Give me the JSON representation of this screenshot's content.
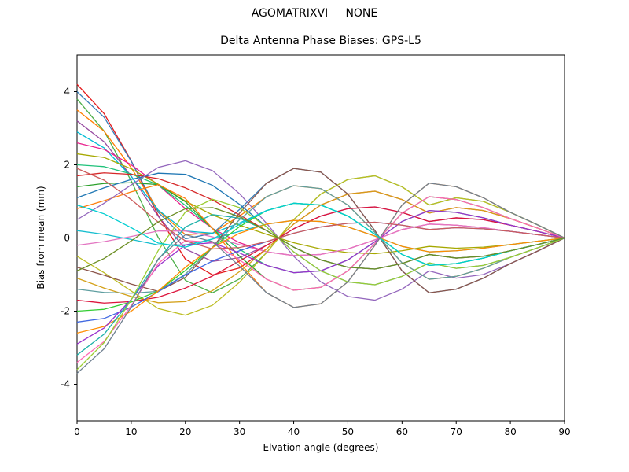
{
  "header": {
    "title_line1": "AGOMATRIXVI     NONE",
    "title_line2": "Delta Antenna Phase Biases: GPS-L5"
  },
  "chart_data": {
    "type": "line",
    "title": "AGOMATRIXVI     NONE",
    "subtitle": "Delta Antenna Phase Biases: GPS-L5",
    "xlabel": "Elvation angle (degrees)",
    "ylabel": "Bias from mean (mm)",
    "xlim": [
      0,
      90
    ],
    "ylim": [
      -5,
      5
    ],
    "xticks": [
      0,
      10,
      20,
      30,
      40,
      50,
      60,
      70,
      80,
      90
    ],
    "yticks": [
      -4,
      -2,
      0,
      2,
      4
    ],
    "grid": false,
    "legend": "none",
    "frame_color": "#000000",
    "background": "#ffffff",
    "x": [
      0,
      5,
      10,
      15,
      20,
      25,
      30,
      35,
      40,
      45,
      50,
      55,
      60,
      65,
      70,
      75,
      80,
      85,
      90
    ],
    "series": [
      {
        "name": "s01",
        "color": "#e41a1c",
        "values": [
          4.2,
          3.4,
          2.11,
          0.61,
          -0.58,
          -1.01,
          -0.82,
          -0.3,
          0.38,
          0.9,
          1.2,
          1.28,
          1.05,
          0.68,
          0.83,
          0.75,
          0.53,
          0.27,
          0
        ]
      },
      {
        "name": "s02",
        "color": "#377eb8",
        "values": [
          4.0,
          3.3,
          2.1,
          0.7,
          -0.02,
          0.12,
          0.78,
          1.5,
          1.9,
          1.8,
          1.2,
          0.2,
          -0.9,
          -1.5,
          -1.4,
          -1.1,
          -0.7,
          -0.36,
          0
        ]
      },
      {
        "name": "s03",
        "color": "#4daf4a",
        "values": [
          3.8,
          2.92,
          1.56,
          0.01,
          -1.16,
          -1.5,
          -1.12,
          -0.4,
          0.5,
          1.2,
          1.6,
          1.7,
          1.4,
          0.9,
          1.1,
          1.0,
          0.7,
          0.36,
          0
        ]
      },
      {
        "name": "s04",
        "color": "#ff7f00",
        "values": [
          3.5,
          2.92,
          1.92,
          0.75,
          0.09,
          0.13,
          0.6,
          1.13,
          1.43,
          1.35,
          0.9,
          0.15,
          -0.68,
          -1.13,
          -1.05,
          -0.83,
          -0.53,
          -0.27,
          0
        ]
      },
      {
        "name": "s05",
        "color": "#984ea3",
        "values": [
          3.2,
          2.63,
          1.69,
          0.59,
          -0.3,
          -0.64,
          -0.54,
          -0.2,
          0.25,
          0.6,
          0.8,
          0.85,
          0.7,
          0.45,
          0.55,
          0.5,
          0.35,
          0.18,
          0
        ]
      },
      {
        "name": "s06",
        "color": "#00bcd4",
        "values": [
          2.9,
          2.46,
          1.68,
          0.76,
          0.19,
          0.13,
          0.41,
          0.75,
          0.95,
          0.9,
          0.6,
          0.1,
          -0.45,
          -0.75,
          -0.7,
          -0.55,
          -0.35,
          -0.18,
          0
        ]
      },
      {
        "name": "s07",
        "color": "#e91e8c",
        "values": [
          2.6,
          2.42,
          2.0,
          1.45,
          0.8,
          0.26,
          -0.13,
          -0.38,
          -0.48,
          -0.45,
          -0.3,
          -0.05,
          0.23,
          0.38,
          0.35,
          0.28,
          0.18,
          0.09,
          0
        ]
      },
      {
        "name": "s08",
        "color": "#a6a800",
        "values": [
          2.3,
          2.2,
          1.89,
          1.47,
          1.01,
          0.63,
          0.35,
          0.1,
          -0.13,
          -0.3,
          -0.4,
          -0.43,
          -0.35,
          -0.23,
          -0.28,
          -0.25,
          -0.18,
          -0.09,
          0
        ]
      },
      {
        "name": "s09",
        "color": "#1fc27a",
        "values": [
          2.0,
          1.95,
          1.75,
          1.45,
          0.89,
          0.26,
          -0.31,
          -0.75,
          -0.95,
          -0.9,
          -0.6,
          -0.1,
          0.45,
          0.75,
          0.7,
          0.55,
          0.35,
          0.18,
          0
        ]
      },
      {
        "name": "s10",
        "color": "#d62728",
        "values": [
          1.7,
          1.78,
          1.74,
          1.62,
          1.37,
          1.04,
          0.63,
          0.2,
          -0.25,
          -0.6,
          -0.8,
          -0.85,
          -0.7,
          -0.45,
          -0.55,
          -0.5,
          -0.35,
          -0.18,
          0
        ]
      },
      {
        "name": "s11",
        "color": "#2ca02c",
        "values": [
          1.4,
          1.49,
          1.51,
          1.46,
          0.99,
          0.26,
          -0.5,
          -1.13,
          -1.43,
          -1.35,
          -0.9,
          -0.15,
          0.68,
          1.13,
          1.05,
          0.83,
          0.53,
          0.27,
          0
        ]
      },
      {
        "name": "s12",
        "color": "#1f77b4",
        "values": [
          1.1,
          1.37,
          1.6,
          1.77,
          1.74,
          1.44,
          0.92,
          0.3,
          -0.38,
          -0.9,
          -1.2,
          -1.28,
          -1.05,
          -0.68,
          -0.83,
          -0.75,
          -0.53,
          -0.27,
          0
        ]
      },
      {
        "name": "s13",
        "color": "#ff7f0e",
        "values": [
          0.8,
          1.02,
          1.26,
          1.46,
          1.08,
          0.26,
          -0.68,
          -1.5,
          -1.9,
          -1.8,
          -1.2,
          -0.2,
          0.9,
          1.5,
          1.4,
          1.1,
          0.7,
          0.36,
          0
        ]
      },
      {
        "name": "s14",
        "color": "#9467bd",
        "values": [
          0.5,
          0.95,
          1.45,
          1.93,
          2.11,
          1.84,
          1.21,
          0.4,
          -0.5,
          -1.2,
          -1.6,
          -1.7,
          -1.4,
          -0.9,
          -1.1,
          -1.0,
          -0.7,
          -0.36,
          0
        ]
      },
      {
        "name": "s15",
        "color": "#17becf",
        "values": [
          0.2,
          0.1,
          -0.04,
          -0.19,
          -0.19,
          -0.03,
          0.18,
          0.38,
          0.48,
          0.45,
          0.3,
          0.05,
          -0.23,
          -0.38,
          -0.35,
          -0.28,
          -0.18,
          -0.09,
          0
        ]
      },
      {
        "name": "s16",
        "color": "#e377c2",
        "values": [
          -0.2,
          -0.1,
          0.04,
          0.19,
          0.19,
          0.03,
          -0.18,
          -0.38,
          -0.48,
          -0.45,
          -0.3,
          -0.05,
          0.23,
          0.38,
          0.35,
          0.28,
          0.18,
          0.09,
          0
        ]
      },
      {
        "name": "s17",
        "color": "#bcbd22",
        "values": [
          -0.5,
          -0.95,
          -1.45,
          -1.93,
          -2.11,
          -1.84,
          -1.21,
          -0.4,
          0.5,
          1.2,
          1.6,
          1.7,
          1.4,
          0.9,
          1.1,
          1.0,
          0.7,
          0.36,
          0
        ]
      },
      {
        "name": "s18",
        "color": "#8c564b",
        "values": [
          -0.8,
          -1.02,
          -1.26,
          -1.46,
          -1.08,
          -0.26,
          0.68,
          1.5,
          1.9,
          1.8,
          1.2,
          0.2,
          -0.9,
          -1.5,
          -1.4,
          -1.1,
          -0.7,
          -0.36,
          0
        ]
      },
      {
        "name": "s19",
        "color": "#d4a017",
        "values": [
          -1.1,
          -1.37,
          -1.6,
          -1.77,
          -1.74,
          -1.44,
          -0.92,
          -0.3,
          0.38,
          0.9,
          1.2,
          1.28,
          1.05,
          0.68,
          0.83,
          0.75,
          0.53,
          0.27,
          0
        ]
      },
      {
        "name": "s20",
        "color": "#5f9ea0",
        "values": [
          -1.4,
          -1.49,
          -1.51,
          -1.46,
          -0.99,
          -0.26,
          0.5,
          1.13,
          1.43,
          1.35,
          0.9,
          0.15,
          -0.68,
          -1.13,
          -1.05,
          -0.83,
          -0.53,
          -0.27,
          0
        ]
      },
      {
        "name": "s21",
        "color": "#dc143c",
        "values": [
          -1.7,
          -1.78,
          -1.74,
          -1.62,
          -1.37,
          -1.04,
          -0.63,
          -0.2,
          0.25,
          0.6,
          0.8,
          0.85,
          0.7,
          0.45,
          0.55,
          0.5,
          0.35,
          0.18,
          0
        ]
      },
      {
        "name": "s22",
        "color": "#32cd32",
        "values": [
          -2.0,
          -1.95,
          -1.75,
          -1.45,
          -0.89,
          -0.26,
          0.31,
          0.75,
          0.95,
          0.9,
          0.6,
          0.1,
          -0.45,
          -0.75,
          -0.7,
          -0.55,
          -0.35,
          -0.18,
          0
        ]
      },
      {
        "name": "s23",
        "color": "#4169e1",
        "values": [
          -2.3,
          -2.2,
          -1.89,
          -1.47,
          -1.01,
          -0.63,
          -0.35,
          -0.1,
          0.13,
          0.3,
          0.4,
          0.43,
          0.35,
          0.23,
          0.28,
          0.25,
          0.18,
          0.09,
          0
        ]
      },
      {
        "name": "s24",
        "color": "#ff8c00",
        "values": [
          -2.6,
          -2.42,
          -2.0,
          -1.45,
          -0.8,
          -0.26,
          0.13,
          0.38,
          0.48,
          0.45,
          0.3,
          0.05,
          -0.23,
          -0.38,
          -0.35,
          -0.28,
          -0.18,
          -0.09,
          0
        ]
      },
      {
        "name": "s25",
        "color": "#9932cc",
        "values": [
          -2.9,
          -2.46,
          -1.68,
          -0.76,
          -0.19,
          -0.13,
          -0.41,
          -0.75,
          -0.95,
          -0.9,
          -0.6,
          -0.1,
          0.45,
          0.75,
          0.7,
          0.55,
          0.35,
          0.18,
          0
        ]
      },
      {
        "name": "s26",
        "color": "#20b2aa",
        "values": [
          -3.2,
          -2.63,
          -1.69,
          -0.59,
          0.3,
          0.64,
          0.54,
          0.2,
          -0.25,
          -0.6,
          -0.8,
          -0.85,
          -0.7,
          -0.45,
          -0.55,
          -0.5,
          -0.35,
          -0.18,
          0
        ]
      },
      {
        "name": "s27",
        "color": "#ff69b4",
        "values": [
          -3.4,
          -2.83,
          -1.85,
          -0.7,
          -0.07,
          -0.12,
          -0.6,
          -1.13,
          -1.43,
          -1.35,
          -0.9,
          -0.15,
          0.68,
          1.13,
          1.05,
          0.83,
          0.53,
          0.27,
          0
        ]
      },
      {
        "name": "s28",
        "color": "#9acd32",
        "values": [
          -3.6,
          -2.86,
          -1.69,
          -0.34,
          0.71,
          1.06,
          0.83,
          0.3,
          -0.38,
          -0.9,
          -1.2,
          -1.28,
          -1.05,
          -0.68,
          -0.83,
          -0.75,
          -0.53,
          -0.27,
          0
        ]
      },
      {
        "name": "s29",
        "color": "#708090",
        "values": [
          -3.7,
          -3.03,
          -1.89,
          -0.57,
          0.09,
          -0.1,
          -0.77,
          -1.5,
          -1.9,
          -1.8,
          -1.2,
          -0.2,
          0.9,
          1.5,
          1.4,
          1.1,
          0.7,
          0.36,
          0
        ]
      },
      {
        "name": "s30",
        "color": "#cd5c5c",
        "values": [
          1.9,
          1.58,
          1.05,
          0.43,
          -0.08,
          -0.3,
          -0.26,
          -0.1,
          0.13,
          0.3,
          0.4,
          0.43,
          0.35,
          0.23,
          0.28,
          0.25,
          0.18,
          0.09,
          0
        ]
      },
      {
        "name": "s31",
        "color": "#00ced1",
        "values": [
          0.9,
          0.66,
          0.28,
          -0.14,
          -0.25,
          -0.03,
          0.37,
          0.75,
          0.95,
          0.9,
          0.6,
          0.1,
          -0.45,
          -0.75,
          -0.7,
          -0.55,
          -0.35,
          -0.18,
          0
        ]
      },
      {
        "name": "s32",
        "color": "#6b8e23",
        "values": [
          -0.9,
          -0.56,
          -0.08,
          0.44,
          0.8,
          0.83,
          0.58,
          0.2,
          -0.25,
          -0.6,
          -0.8,
          -0.85,
          -0.7,
          -0.45,
          -0.55,
          -0.5,
          -0.35,
          -0.18,
          0
        ]
      }
    ]
  }
}
